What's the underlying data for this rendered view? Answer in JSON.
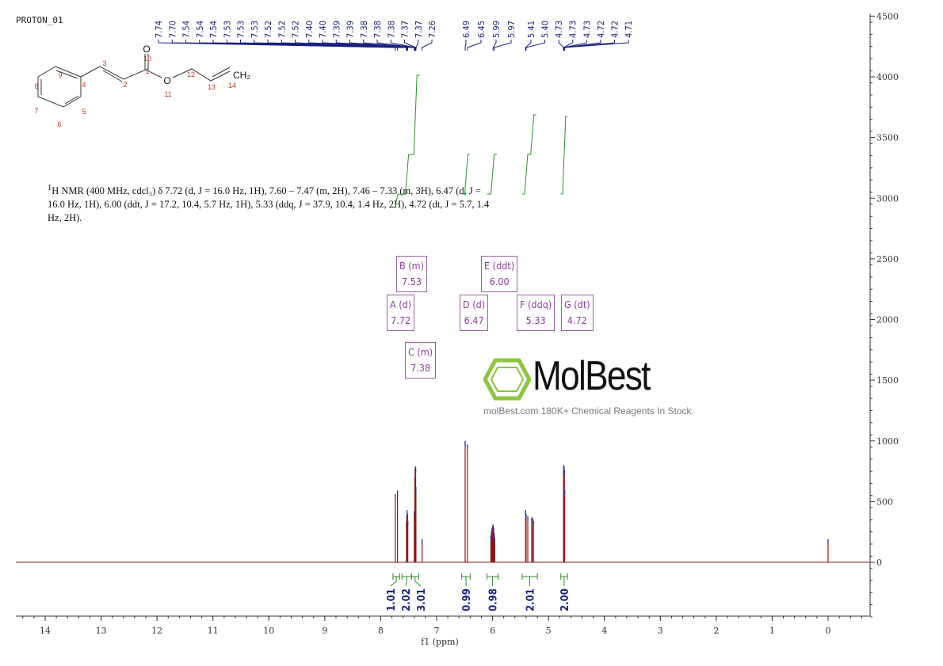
{
  "title": "PROTON_01",
  "description_parts": {
    "sup": "1",
    "text": "H NMR (400 MHz, cdcl₃) δ 7.72 (d, J = 16.0 Hz, 1H), 7.60 – 7.47 (m, 2H), 7.46 – 7.33 (m, 3H), 6.47 (d, J = 16.0 Hz, 1H), 6.00 (ddt, J = 17.2, 10.4, 5.7 Hz, 1H), 5.33 (ddq, J = 37.9, 10.4, 1.4 Hz, 2H), 4.72 (dt, J = 5.7, 1.4 Hz, 2H)."
  },
  "structure": {
    "atoms": [
      "1",
      "2",
      "3",
      "4",
      "5",
      "6",
      "7",
      "8",
      "9",
      "10",
      "11",
      "12",
      "13",
      "14"
    ],
    "O_label": "O",
    "CH2_label": "CH₂"
  },
  "watermark": {
    "brand": "MolBest",
    "tagline": "molBest.com 180K+ Chemical Reagents In Stock."
  },
  "chart_data": {
    "type": "line",
    "xlabel": "f1 (ppm)",
    "xlim": [
      14.5,
      -0.75
    ],
    "ylim": [
      -500,
      4500
    ],
    "x_ticks": [
      14,
      13,
      12,
      11,
      10,
      9,
      8,
      7,
      6,
      5,
      4,
      3,
      2,
      1,
      0
    ],
    "y_ticks": [
      0,
      500,
      1000,
      1500,
      2000,
      2500,
      3000,
      3500,
      4000,
      4500
    ],
    "colors": {
      "spectrum": "#8b1a1a",
      "peak_labels": "#1a237e",
      "integral": "#2e8b2e",
      "multiplet": "#8a3f98"
    },
    "peaks": [
      [
        7.74,
        560
      ],
      [
        7.7,
        590
      ],
      [
        7.54,
        330
      ],
      [
        7.535,
        380
      ],
      [
        7.53,
        430
      ],
      [
        7.52,
        400
      ],
      [
        7.515,
        340
      ],
      [
        7.4,
        420
      ],
      [
        7.39,
        700
      ],
      [
        7.385,
        770
      ],
      [
        7.38,
        790
      ],
      [
        7.375,
        780
      ],
      [
        7.37,
        620
      ],
      [
        7.26,
        190
      ],
      [
        6.49,
        1000
      ],
      [
        6.45,
        970
      ],
      [
        6.03,
        220
      ],
      [
        6.02,
        260
      ],
      [
        6.01,
        280
      ],
      [
        6.0,
        300
      ],
      [
        5.99,
        310
      ],
      [
        5.98,
        280
      ],
      [
        5.97,
        240
      ],
      [
        5.96,
        200
      ],
      [
        5.41,
        430
      ],
      [
        5.4,
        400
      ],
      [
        5.37,
        380
      ],
      [
        5.3,
        370
      ],
      [
        5.28,
        360
      ],
      [
        5.27,
        340
      ],
      [
        4.73,
        760
      ],
      [
        4.728,
        800
      ],
      [
        4.72,
        790
      ],
      [
        4.715,
        760
      ],
      [
        4.71,
        600
      ],
      [
        0.0,
        190
      ]
    ],
    "peak_labels": [
      [
        "7.74",
        "7.70",
        "7.54",
        "7.54",
        "7.54",
        "7.53",
        "7.53",
        "7.53",
        "7.52",
        "7.52",
        "7.52",
        "7.40",
        "7.40",
        "7.39",
        "7.39",
        "7.38",
        "7.38",
        "7.38",
        "7.37",
        "7.37",
        "7.26"
      ],
      [
        "6.49",
        "6.45",
        "5.99",
        "5.97"
      ],
      [
        "5.41",
        "5.40",
        "4.73",
        "4.73",
        "4.73",
        "4.72",
        "4.72",
        "4.71"
      ]
    ],
    "multiplets": [
      {
        "id": "A",
        "type": "d",
        "shift": "7.72"
      },
      {
        "id": "B",
        "type": "m",
        "shift": "7.53"
      },
      {
        "id": "C",
        "type": "m",
        "shift": "7.38"
      },
      {
        "id": "D",
        "type": "d",
        "shift": "6.47"
      },
      {
        "id": "E",
        "type": "ddt",
        "shift": "6.00"
      },
      {
        "id": "F",
        "type": "ddq",
        "shift": "5.33"
      },
      {
        "id": "G",
        "type": "dt",
        "shift": "4.72"
      }
    ],
    "integrals": [
      {
        "range": [
          7.78,
          7.66
        ],
        "value": "1.01"
      },
      {
        "range": [
          7.62,
          7.45
        ],
        "value": "2.02"
      },
      {
        "range": [
          7.45,
          7.32
        ],
        "value": "3.01"
      },
      {
        "range": [
          6.55,
          6.4
        ],
        "value": "0.99"
      },
      {
        "range": [
          6.1,
          5.9
        ],
        "value": "0.98"
      },
      {
        "range": [
          5.47,
          5.2
        ],
        "value": "2.01"
      },
      {
        "range": [
          4.78,
          4.66
        ],
        "value": "2.00"
      }
    ]
  }
}
